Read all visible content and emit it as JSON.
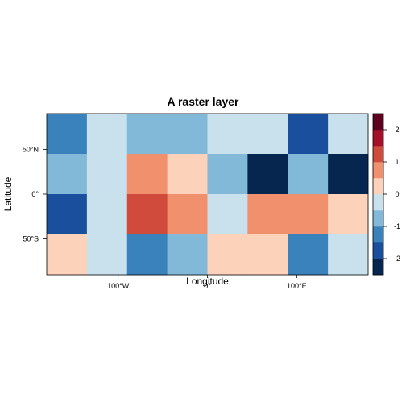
{
  "chart_data": {
    "type": "heatmap",
    "title": "A raster layer",
    "xlabel": "Longitude",
    "ylabel": "Latitude",
    "xlim": [
      -180,
      180
    ],
    "ylim": [
      -90,
      90
    ],
    "x_ticks": [
      {
        "value": -100,
        "label": "100°W"
      },
      {
        "value": 0,
        "label": "0°"
      },
      {
        "value": 100,
        "label": "100°E"
      }
    ],
    "y_ticks": [
      {
        "value": 50,
        "label": "50°N"
      },
      {
        "value": 0,
        "label": "0°"
      },
      {
        "value": -50,
        "label": "50°S"
      }
    ],
    "ncols": 8,
    "nrows": 4,
    "values": [
      [
        -1.25,
        -0.25,
        -0.75,
        -0.75,
        -0.25,
        -0.25,
        -1.75,
        -0.25
      ],
      [
        -0.75,
        -0.25,
        0.75,
        0.25,
        -0.75,
        -2.25,
        -0.75,
        -2.25
      ],
      [
        -1.75,
        -0.25,
        1.25,
        0.75,
        -0.25,
        0.75,
        0.75,
        0.25
      ],
      [
        0.25,
        -0.25,
        -1.25,
        -0.75,
        0.25,
        0.25,
        -1.25,
        -0.25
      ]
    ],
    "colorbar": {
      "breaks": [
        -2.5,
        -2,
        -1.5,
        -1,
        -0.5,
        0,
        0.5,
        1,
        1.5,
        2,
        2.5
      ],
      "colors": [
        "#062650",
        "#1a4f9d",
        "#3a82bc",
        "#82b8d8",
        "#c9e0ed",
        "#fdd2bb",
        "#f1906d",
        "#d04b3b",
        "#a50f27",
        "#5e0020"
      ],
      "tick_values": [
        -2,
        -1,
        0,
        1,
        2
      ],
      "tick_labels": [
        "-2",
        "-1",
        "0",
        "1",
        "2"
      ]
    }
  }
}
